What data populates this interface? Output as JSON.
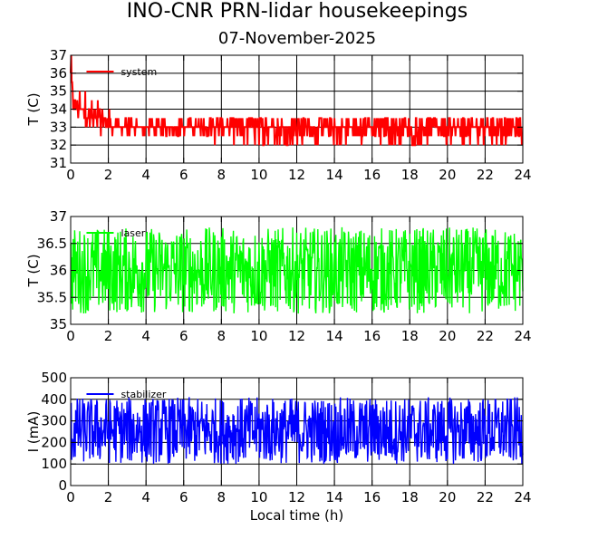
{
  "title": "INO-CNR PRN-lidar housekeepings",
  "subtitle": "07-November-2025",
  "chart_data": [
    {
      "type": "line",
      "ylabel": "T (C)",
      "xlabel": "",
      "xlim": [
        0,
        24
      ],
      "ylim": [
        31,
        37
      ],
      "xticks": [
        0,
        2,
        4,
        6,
        8,
        10,
        12,
        14,
        16,
        18,
        20,
        22,
        24
      ],
      "yticks": [
        31,
        32,
        33,
        34,
        35,
        36,
        37
      ],
      "grid": true,
      "legend_position": "top-left",
      "series": [
        {
          "name": "system",
          "color": "#ff0000",
          "x": [
            0,
            0.05,
            0.1,
            0.2,
            0.4,
            0.6,
            0.8,
            1.0,
            1.2,
            1.4,
            1.6,
            1.8,
            2.0,
            2.5,
            3,
            4,
            5,
            6,
            7,
            8,
            9,
            10,
            11,
            12,
            13,
            14,
            15,
            16,
            17,
            18,
            19,
            20,
            21,
            22,
            23,
            24
          ],
          "values": [
            36.5,
            35.5,
            34.5,
            34,
            34,
            33.8,
            33.7,
            33.7,
            33.6,
            33.5,
            33.5,
            33.3,
            33.2,
            33,
            33,
            33,
            33,
            33,
            33,
            33,
            33,
            33,
            33,
            33,
            33,
            33,
            33,
            33,
            33,
            33,
            33,
            33,
            33,
            33,
            33,
            33
          ],
          "min": [
            34,
            34,
            33.5,
            33,
            33,
            33,
            33,
            33,
            33,
            33,
            32.5,
            32.5,
            32.5,
            32.5,
            32.5,
            32.5,
            32.5,
            32.5,
            32.5,
            32,
            32,
            32,
            32,
            32,
            32,
            32,
            32,
            32,
            32,
            32,
            32,
            32,
            32,
            32,
            32,
            32
          ],
          "max": [
            36.8,
            36.5,
            35,
            35,
            35,
            35,
            35,
            35,
            34.5,
            34.5,
            34,
            34,
            34,
            33.5,
            33.5,
            33.5,
            33.5,
            33.5,
            33.5,
            33.5,
            33.5,
            33.5,
            33.5,
            33.5,
            33.5,
            33.5,
            33.5,
            33.5,
            33.5,
            33.5,
            33.5,
            33.5,
            33.5,
            33.5,
            33.5,
            33.5
          ]
        }
      ]
    },
    {
      "type": "line",
      "ylabel": "T (C)",
      "xlabel": "",
      "xlim": [
        0,
        24
      ],
      "ylim": [
        35,
        37
      ],
      "xticks": [
        0,
        2,
        4,
        6,
        8,
        10,
        12,
        14,
        16,
        18,
        20,
        22,
        24
      ],
      "yticks": [
        35,
        35.5,
        36,
        36.5,
        37
      ],
      "ytick_labels": [
        "35",
        "35.5",
        "36",
        "36.5",
        "37"
      ],
      "grid": true,
      "legend_position": "top-left",
      "series": [
        {
          "name": "laser",
          "color": "#00ff00",
          "x": [
            0,
            24
          ],
          "values": [
            36,
            36
          ],
          "min": [
            35.2,
            35.2
          ],
          "max": [
            36.8,
            36.8
          ]
        }
      ]
    },
    {
      "type": "line",
      "ylabel": "I (mA)",
      "xlabel": "Local time (h)",
      "xlim": [
        0,
        24
      ],
      "ylim": [
        0,
        500
      ],
      "xticks": [
        0,
        2,
        4,
        6,
        8,
        10,
        12,
        14,
        16,
        18,
        20,
        22,
        24
      ],
      "yticks": [
        0,
        100,
        200,
        300,
        400,
        500
      ],
      "grid": true,
      "legend_position": "top-left",
      "series": [
        {
          "name": "stabilizer",
          "color": "#0000ff",
          "x": [
            0,
            24
          ],
          "values": [
            255,
            255
          ],
          "min": [
            100,
            100
          ],
          "max": [
            410,
            410
          ]
        }
      ]
    }
  ]
}
